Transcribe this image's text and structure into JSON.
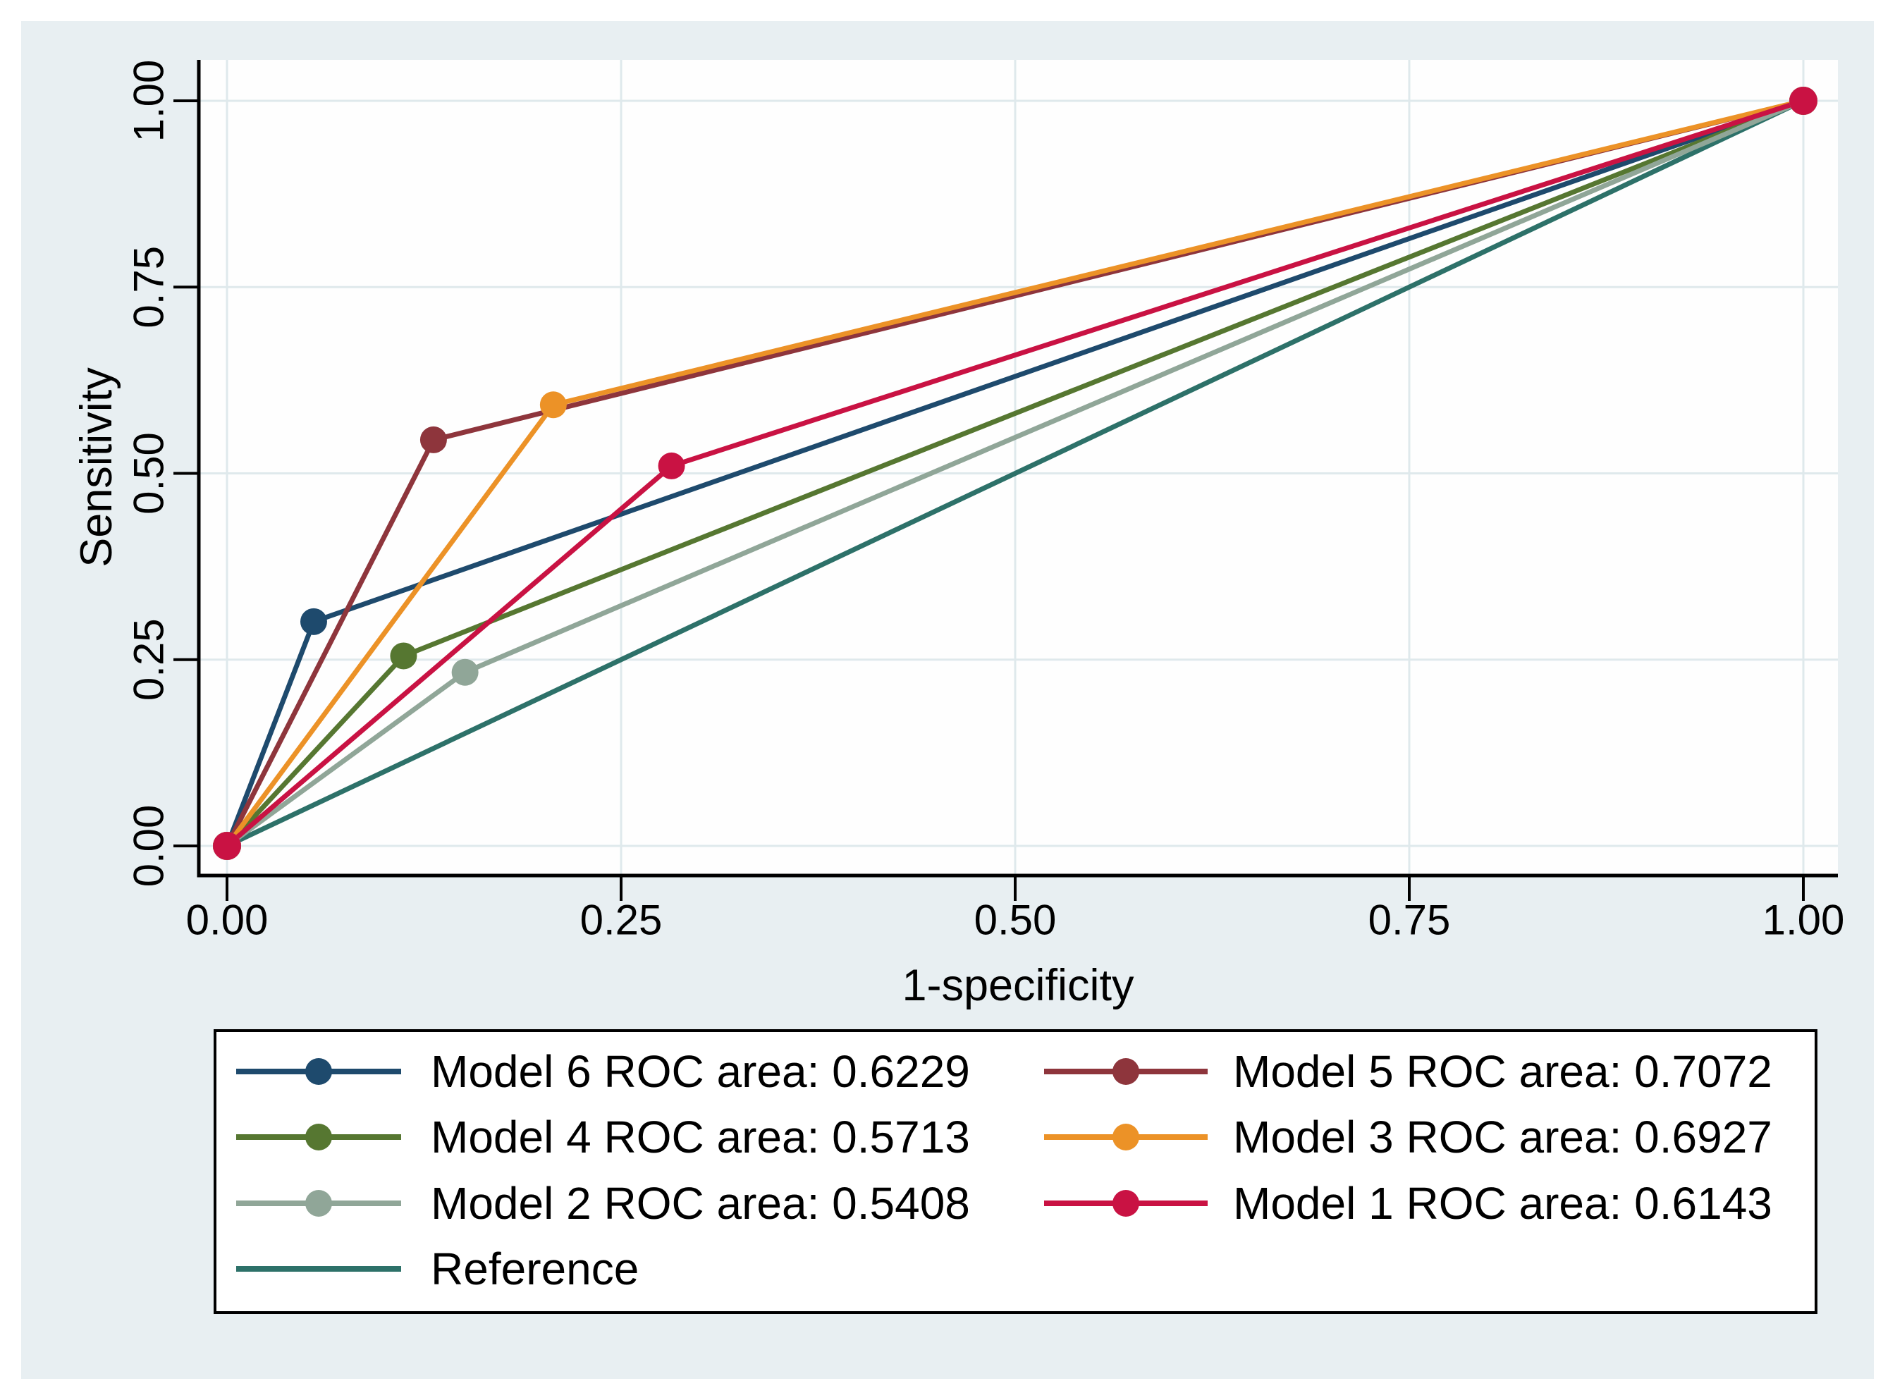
{
  "figure": {
    "outer_background": "#ffffff",
    "canvas_background": "#e8eff2",
    "plot_background": "#fefefe",
    "grid_color": "#dfe9ec",
    "axis_color": "#000000",
    "legend_border_color": "#000000",
    "legend_fill": "#ffffff",
    "text_color": "#000000"
  },
  "chart_data": {
    "type": "line",
    "subtype": "roc-curves",
    "title": "",
    "xlabel": "1-specificity",
    "ylabel": "Sensitivity",
    "xlim": [
      0,
      1
    ],
    "ylim": [
      0,
      1
    ],
    "grid": true,
    "x_tick_values": [
      0,
      0.25,
      0.5,
      0.75,
      1
    ],
    "x_tick_labels": [
      "0.00",
      "0.25",
      "0.50",
      "0.75",
      "1.00"
    ],
    "y_tick_values": [
      0,
      0.25,
      0.5,
      0.75,
      1
    ],
    "y_tick_labels": [
      "0.00",
      "0.25",
      "0.50",
      "0.75",
      "1.00"
    ],
    "series": [
      {
        "name": "Model 6 ROC area: 0.6229",
        "color": "#1e4a6d",
        "auc": 0.6229,
        "has_marker": true,
        "points": [
          [
            0,
            0
          ],
          [
            0.055,
            0.301
          ],
          [
            1,
            1
          ]
        ]
      },
      {
        "name": "Model 5 ROC area: 0.7072",
        "color": "#8e353c",
        "auc": 0.7072,
        "has_marker": true,
        "points": [
          [
            0,
            0
          ],
          [
            0.131,
            0.545
          ],
          [
            1,
            1
          ]
        ]
      },
      {
        "name": "Model 4 ROC area: 0.5713",
        "color": "#567731",
        "auc": 0.5713,
        "has_marker": true,
        "points": [
          [
            0,
            0
          ],
          [
            0.112,
            0.255
          ],
          [
            1,
            1
          ]
        ]
      },
      {
        "name": "Model 3 ROC area: 0.6927",
        "color": "#ec9227",
        "auc": 0.6927,
        "has_marker": true,
        "points": [
          [
            0,
            0
          ],
          [
            0.207,
            0.592
          ],
          [
            1,
            1
          ]
        ]
      },
      {
        "name": "Model 2 ROC area: 0.5408",
        "color": "#90a698",
        "auc": 0.5408,
        "has_marker": true,
        "points": [
          [
            0,
            0
          ],
          [
            0.151,
            0.233
          ],
          [
            1,
            1
          ]
        ]
      },
      {
        "name": "Model 1 ROC area: 0.6143",
        "color": "#c91243",
        "auc": 0.6143,
        "has_marker": true,
        "points": [
          [
            0,
            0
          ],
          [
            0.282,
            0.51
          ],
          [
            1,
            1
          ]
        ]
      },
      {
        "name": "Reference",
        "color": "#2d7169",
        "auc": null,
        "has_marker": false,
        "points": [
          [
            0,
            0
          ],
          [
            1,
            1
          ]
        ]
      }
    ],
    "draw_order": [
      6,
      0,
      1,
      2,
      3,
      4,
      5
    ],
    "legend": {
      "position": "bottom",
      "columns": [
        [
          0,
          2,
          4,
          6
        ],
        [
          1,
          3,
          5
        ]
      ]
    }
  }
}
